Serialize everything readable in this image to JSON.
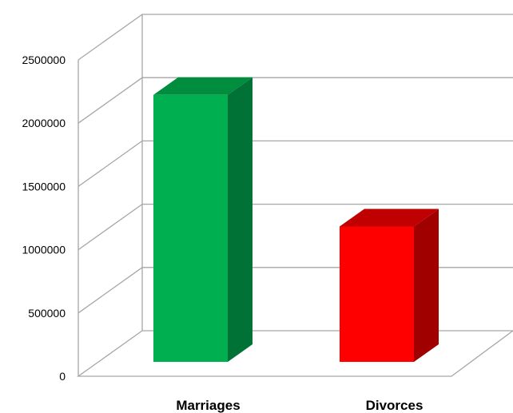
{
  "chart_data": {
    "type": "bar",
    "title": "",
    "xlabel": "",
    "ylabel": "",
    "categories": [
      "Marriages",
      "Divorces"
    ],
    "values": [
      2110000,
      1070000
    ],
    "ylim": [
      0,
      2500000
    ],
    "yticks": [
      "0",
      "500000",
      "1000000",
      "1500000",
      "2000000",
      "2500000"
    ],
    "grid": true,
    "legend": "none",
    "three_d": true,
    "colors": [
      {
        "front": "#00b050",
        "side": "#007236",
        "top": "#008d3e"
      },
      {
        "front": "#ff0000",
        "side": "#a00000",
        "top": "#c00000"
      }
    ],
    "gridline_color": "#a6a6a6"
  }
}
